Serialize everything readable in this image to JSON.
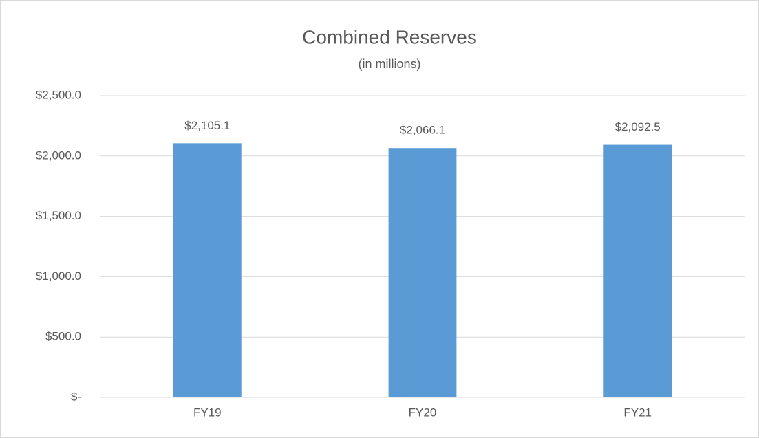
{
  "chart_data": {
    "type": "bar",
    "title": "Combined Reserves",
    "subtitle": "(in millions)",
    "categories": [
      "FY19",
      "FY20",
      "FY21"
    ],
    "values": [
      2105.1,
      2066.1,
      2092.5
    ],
    "value_labels": [
      "$2,105.1",
      "$2,066.1",
      "$2,092.5"
    ],
    "color": "#5b9bd5",
    "ylim": [
      0,
      2500
    ],
    "yticks": [
      {
        "value": 0,
        "label": "$-"
      },
      {
        "value": 500,
        "label": "$500.0"
      },
      {
        "value": 1000,
        "label": "$1,000.0"
      },
      {
        "value": 1500,
        "label": "$1,500.0"
      },
      {
        "value": 2000,
        "label": "$2,000.0"
      },
      {
        "value": 2500,
        "label": "$2,500.0"
      }
    ],
    "grid": true
  }
}
